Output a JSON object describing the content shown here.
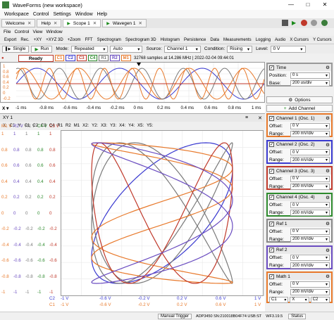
{
  "window": {
    "title": "WaveForms (new workspace)"
  },
  "menu": [
    "Workspace",
    "Control",
    "Settings",
    "Window",
    "Help"
  ],
  "tabs": [
    "Welcome",
    "Help",
    "Scope 1",
    "Wavegen 1"
  ],
  "scope_menu": [
    "File",
    "Control",
    "View",
    "Window"
  ],
  "scope_toolbar": [
    "Export",
    "Rec.",
    "+XY",
    "+XYZ 3D",
    "+Zoom",
    "FFT",
    "Spectrogram",
    "Spectrogram 3D",
    "Histogram",
    "Persistence",
    "Data",
    "Measurements",
    "Logging",
    "Audio",
    "X Cursors",
    "Y Cursors"
  ],
  "run": {
    "single": "Single",
    "run": "Run",
    "mode_label": "Mode:",
    "mode": "Repeated",
    "auto": "Auto",
    "source_label": "Source:",
    "source": "Channel 1",
    "condition_label": "Condition:",
    "condition": "Rising",
    "level_label": "Level:",
    "level": "0 V"
  },
  "status": {
    "ready": "Ready",
    "channels": [
      "C1",
      "C2",
      "C3",
      "C4",
      "R1",
      "R2",
      "M1"
    ],
    "info": "32768 samples at 14.286 MHz | 2022-02-04 09:44:01"
  },
  "colors": {
    "c1": "#e8792b",
    "c2": "#3a3ad0",
    "c3": "#c0392b",
    "c4": "#2e8b2e",
    "r1": "#7a7a7a",
    "r2": "#6a4cc0",
    "m1": "#e8792b"
  },
  "scope_y": [
    "1",
    "0.8",
    "0.6",
    "0.4",
    "0.2",
    "0",
    "-0.2"
  ],
  "time_axis": [
    "-1 ms",
    "-0.8 ms",
    "-0.6 ms",
    "-0.4 ms",
    "-0.2 ms",
    "0 ms",
    "0.2 ms",
    "0.4 ms",
    "0.6 ms",
    "0.8 ms",
    "1 ms"
  ],
  "xy": {
    "title": "XY 1",
    "chan_row": [
      "X:",
      "C1",
      "Y:",
      "C1",
      "C2",
      "C3",
      "C4",
      "R1",
      "R2",
      "M1",
      "X2:",
      "Y2:",
      "X3:",
      "Y3:",
      "X4:",
      "Y4:",
      "X5:",
      "Y5:"
    ],
    "y_headers": [
      "M1 V",
      "R2 V",
      "R1 V",
      "C4 V",
      "C3 V"
    ],
    "y_cols": [
      [
        "1",
        "0.8",
        "0.6",
        "0.4",
        "0.2",
        "0",
        "-0.2",
        "-0.4",
        "-0.6",
        "-0.8",
        "-1"
      ],
      [
        "1",
        "0.8",
        "0.6",
        "0.4",
        "0.2",
        "0",
        "-0.2",
        "-0.4",
        "-0.6",
        "-0.8",
        "-1"
      ],
      [
        "1",
        "0.8",
        "0.6",
        "0.4",
        "0.2",
        "0",
        "-0.2",
        "-0.4",
        "-0.6",
        "-0.8",
        "-1"
      ],
      [
        "1",
        "0.8",
        "0.6",
        "0.4",
        "0.2",
        "0",
        "-0.2",
        "-0.4",
        "-0.6",
        "-0.8",
        "-1"
      ],
      [
        "1",
        "0.8",
        "0.6",
        "0.4",
        "0.2",
        "0",
        "-0.2",
        "-0.4",
        "-0.6",
        "-0.8",
        "-1"
      ]
    ],
    "x_rows": [
      [
        "C2",
        "-1 V",
        "-0.6 V",
        "-0.2 V",
        "0.2 V",
        "0.6 V",
        "1 V"
      ],
      [
        "C1",
        "-1 V",
        "-0.6 V",
        "-0.2 V",
        "0.2 V",
        "0.6 V",
        "1 V"
      ]
    ]
  },
  "right": {
    "time": {
      "title": "Time",
      "position_label": "Position:",
      "position": "0 s",
      "base_label": "Base:",
      "base": "200 us/div"
    },
    "options": "Options",
    "add_channel": "Add Channel",
    "channels": [
      {
        "title": "Channel 1 (Osc. 1)",
        "offset": "0 V",
        "range": "200 mV/div"
      },
      {
        "title": "Channel 2 (Osc. 2)",
        "offset": "0 V",
        "range": "200 mV/div"
      },
      {
        "title": "Channel 3 (Osc. 3)",
        "offset": "0 V",
        "range": "200 mV/div"
      },
      {
        "title": "Channel 4 (Osc. 4)",
        "offset": "0 V",
        "range": "200 mV/div"
      },
      {
        "title": "Ref 1",
        "offset": "0 V",
        "range": "200 mV/div"
      },
      {
        "title": "Ref 2",
        "offset": "0 V",
        "range": "200 mV/div"
      },
      {
        "title": "Math 1",
        "offset": "0 V",
        "range": "200 mV/div",
        "fn": [
          "C1",
          "X",
          "C2"
        ]
      }
    ],
    "offset_label": "Offset:",
    "range_label": "Range:"
  },
  "bottom": {
    "trigger": "Manual Trigger",
    "device": "ADP3450 SN:210018B04F74 USB:ST",
    "wf": "WF3.19.5",
    "status": "Status"
  }
}
